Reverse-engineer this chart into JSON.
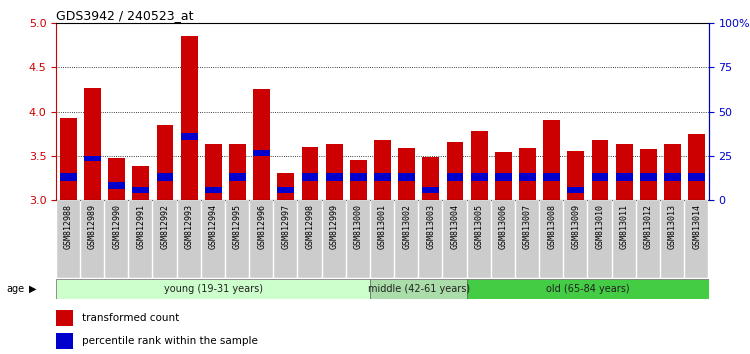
{
  "title": "GDS3942 / 240523_at",
  "samples": [
    "GSM812988",
    "GSM812989",
    "GSM812990",
    "GSM812991",
    "GSM812992",
    "GSM812993",
    "GSM812994",
    "GSM812995",
    "GSM812996",
    "GSM812997",
    "GSM812998",
    "GSM812999",
    "GSM813000",
    "GSM813001",
    "GSM813002",
    "GSM813003",
    "GSM813004",
    "GSM813005",
    "GSM813006",
    "GSM813007",
    "GSM813008",
    "GSM813009",
    "GSM813010",
    "GSM813011",
    "GSM813012",
    "GSM813013",
    "GSM813014"
  ],
  "transformed_count": [
    3.93,
    4.27,
    3.47,
    3.38,
    3.85,
    4.85,
    3.63,
    3.63,
    4.25,
    3.3,
    3.6,
    3.63,
    3.45,
    3.68,
    3.59,
    3.49,
    3.65,
    3.78,
    3.54,
    3.59,
    3.9,
    3.55,
    3.68,
    3.63,
    3.58,
    3.63,
    3.75
  ],
  "percentile_bottom": [
    3.22,
    3.44,
    3.13,
    3.08,
    3.22,
    3.68,
    3.08,
    3.22,
    3.5,
    3.08,
    3.22,
    3.22,
    3.22,
    3.22,
    3.22,
    3.08,
    3.22,
    3.22,
    3.22,
    3.22,
    3.22,
    3.08,
    3.22,
    3.22,
    3.22,
    3.22,
    3.22
  ],
  "percentile_top": [
    3.3,
    3.5,
    3.2,
    3.15,
    3.3,
    3.76,
    3.15,
    3.3,
    3.57,
    3.15,
    3.3,
    3.3,
    3.3,
    3.3,
    3.3,
    3.15,
    3.3,
    3.3,
    3.3,
    3.3,
    3.3,
    3.15,
    3.3,
    3.3,
    3.3,
    3.3,
    3.3
  ],
  "groups": [
    {
      "label": "young (19-31 years)",
      "start": 0,
      "end": 13,
      "color": "#ccffcc"
    },
    {
      "label": "middle (42-61 years)",
      "start": 13,
      "end": 17,
      "color": "#aaddaa"
    },
    {
      "label": "old (65-84 years)",
      "start": 17,
      "end": 27,
      "color": "#44cc44"
    }
  ],
  "ylim": [
    3.0,
    5.0
  ],
  "y2lim": [
    0,
    100
  ],
  "yticks": [
    3.0,
    3.5,
    4.0,
    4.5,
    5.0
  ],
  "y2ticks": [
    0,
    25,
    50,
    75,
    100
  ],
  "bar_color": "#cc0000",
  "percentile_color": "#0000cc",
  "grid_color": "#000000",
  "title_color": "#000000",
  "left_axis_color": "#cc0000",
  "right_axis_color": "#0000cc",
  "bar_width": 0.7,
  "tick_bg_color": "#cccccc"
}
